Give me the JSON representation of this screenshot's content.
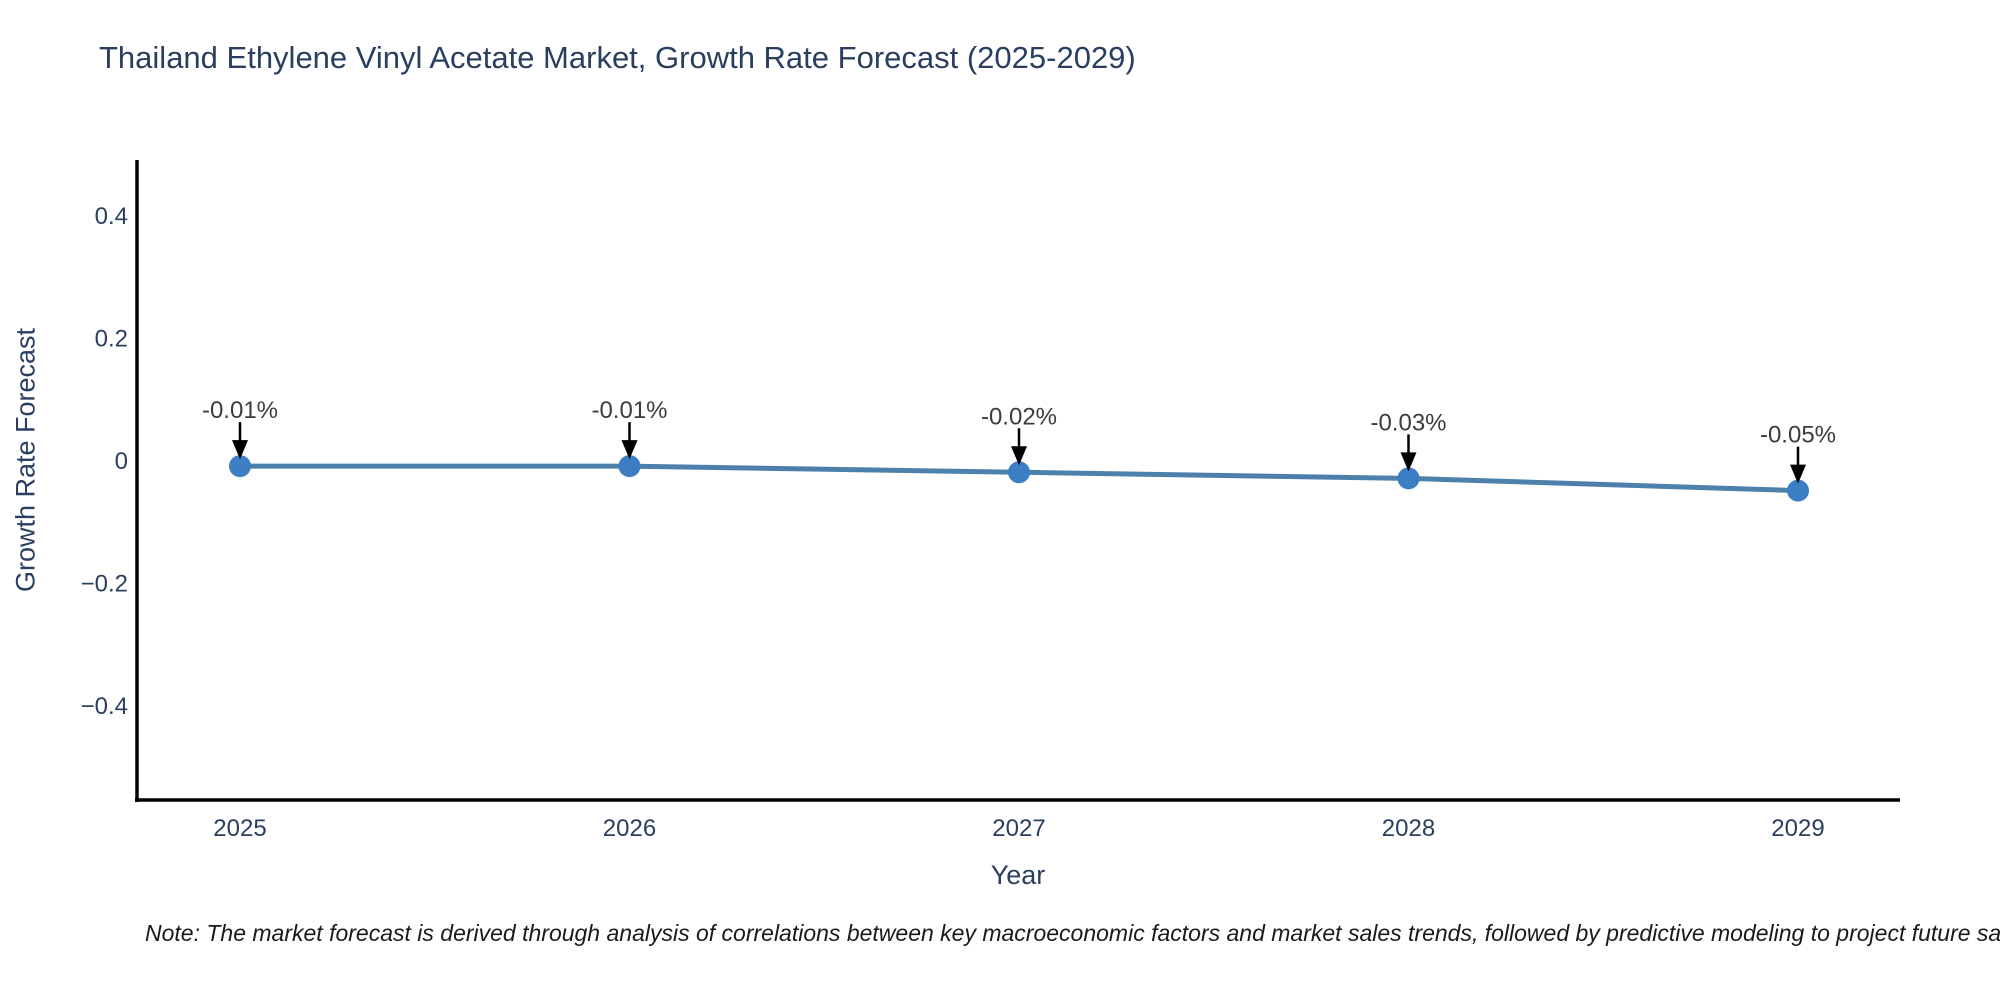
{
  "title": "Thailand Ethylene Vinyl Acetate Market, Growth Rate Forecast (2025-2029)",
  "note": "Note: The market forecast is derived through analysis of correlations between key macroeconomic factors and market sales trends, followed by predictive modeling to project future sa",
  "colors": {
    "title_text": "#2a3f5f",
    "axis_text": "#2a3f5f",
    "axis_line": "#000000",
    "series_line": "#4d80ab",
    "marker_fill": "#3b7ec4",
    "annotation_text": "#3c3c3c",
    "arrow": "#000000",
    "note_text": "#1a1a1a",
    "background": "#ffffff"
  },
  "chart_data": {
    "type": "line",
    "title": "Thailand Ethylene Vinyl Acetate Market, Growth Rate Forecast (2025-2029)",
    "xlabel": "Year",
    "ylabel": "Growth Rate Forecast",
    "x": [
      2025,
      2026,
      2027,
      2028,
      2029
    ],
    "x_tick_labels": [
      "2025",
      "2026",
      "2027",
      "2028",
      "2029"
    ],
    "values": [
      -0.01,
      -0.01,
      -0.02,
      -0.03,
      -0.05
    ],
    "unit": "%",
    "point_labels": [
      "-0.01%",
      "-0.01%",
      "-0.02%",
      "-0.03%",
      "-0.05%"
    ],
    "y_ticks": [
      0.4,
      0.2,
      0,
      -0.2,
      -0.4
    ],
    "y_tick_labels": [
      "0.4",
      "0.2",
      "0",
      "−0.2",
      "−0.4"
    ],
    "ylim": [
      -0.56,
      0.49
    ],
    "grid": false,
    "legend_position": "none",
    "marker": "circle",
    "annotations_have_arrows": true
  }
}
